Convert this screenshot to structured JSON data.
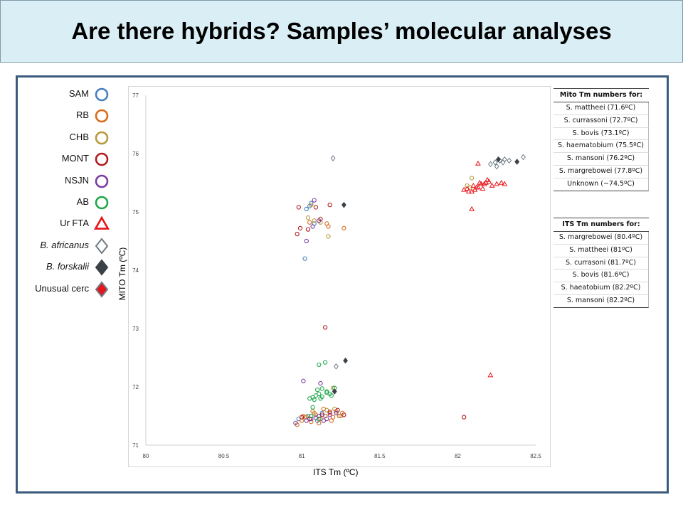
{
  "title": "Are there hybrids? Samples’ molecular analyses",
  "legend": [
    {
      "label": "SAM",
      "symbol": "circle",
      "color": "#4a7fc1",
      "fill": "none",
      "italic": false
    },
    {
      "label": "RB",
      "symbol": "circle",
      "color": "#d96b1e",
      "fill": "none",
      "italic": false
    },
    {
      "label": "CHB",
      "symbol": "circle",
      "color": "#b8993a",
      "fill": "none",
      "italic": false
    },
    {
      "label": "MONT",
      "symbol": "circle",
      "color": "#b01e1e",
      "fill": "none",
      "italic": false
    },
    {
      "label": "NSJN",
      "symbol": "circle",
      "color": "#7a3ea0",
      "fill": "none",
      "italic": false
    },
    {
      "label": "AB",
      "symbol": "circle",
      "color": "#1fa84a",
      "fill": "none",
      "italic": false
    },
    {
      "label": "Ur FTA",
      "symbol": "triangle",
      "color": "#e8141a",
      "fill": "none",
      "italic": false
    },
    {
      "label": "B. africanus",
      "symbol": "diamond",
      "color": "#6d7b87",
      "fill": "none",
      "italic": true
    },
    {
      "label": "B. forskalii",
      "symbol": "diamond",
      "color": "#3a4248",
      "fill": "#3a4248",
      "italic": true
    },
    {
      "label": "Unusual cerc",
      "symbol": "diamond",
      "color": "#6d7b87",
      "fill": "#e8141a",
      "italic": false
    }
  ],
  "mito_table": {
    "header": "Mito Tm numbers for:",
    "rows": [
      "S. mattheei (71.6ºC)",
      "S. currassoni (72.7ºC)",
      "S. bovis (73.1ºC)",
      "S. haematobium (75.5ºC)",
      "S. mansoni (76.2ºC)",
      "S. margrebowei (77.8ºC)",
      "Unknown (~74.5ºC)"
    ]
  },
  "its_table": {
    "header": "ITS Tm numbers for:",
    "rows": [
      "S. margrebowei (80.4ºC)",
      "S. mattheei (81ºC)",
      "S. currasoni (81.7ºC)",
      "S. bovis (81.6ºC)",
      "S. haeatobium (82.2ºC)",
      "S. mansoni (82.2ºC)"
    ]
  },
  "chart_data": {
    "type": "scatter",
    "xlabel": "ITS Tm (ºC)",
    "ylabel": "MITO Tm (ºC)",
    "xlim": [
      80,
      82.5
    ],
    "ylim": [
      71,
      77
    ],
    "xticks": [
      "80",
      "80.5",
      "81",
      "81.5",
      "82",
      "82.5"
    ],
    "yticks": [
      "71",
      "72",
      "73",
      "74",
      "75",
      "76",
      "77"
    ],
    "grid": false,
    "colors": {
      "SAM": "#4a7fc1",
      "RB": "#d96b1e",
      "CHB": "#b8993a",
      "MONT": "#b01e1e",
      "NSJN": "#7a3ea0",
      "AB": "#1fa84a",
      "Ur FTA": "#e8141a",
      "B. africanus": "#6d7b87",
      "B. forskalii": "#3a4248"
    },
    "series": [
      {
        "name": "SAM",
        "marker": "circle",
        "points": [
          [
            81.02,
            74.2
          ],
          [
            81.03,
            75.05
          ],
          [
            81.05,
            75.1
          ],
          [
            81.08,
            74.8
          ],
          [
            81.06,
            75.15
          ],
          [
            80.98,
            71.45
          ],
          [
            81.04,
            71.5
          ],
          [
            81.1,
            71.42
          ],
          [
            81.13,
            71.55
          ]
        ]
      },
      {
        "name": "RB",
        "marker": "circle",
        "points": [
          [
            80.97,
            71.35
          ],
          [
            81.0,
            71.42
          ],
          [
            81.03,
            71.48
          ],
          [
            81.06,
            71.4
          ],
          [
            81.09,
            71.52
          ],
          [
            81.12,
            71.45
          ],
          [
            81.15,
            71.5
          ],
          [
            81.18,
            71.55
          ],
          [
            81.2,
            71.48
          ],
          [
            81.22,
            71.58
          ],
          [
            81.24,
            71.5
          ],
          [
            81.26,
            71.55
          ],
          [
            81.14,
            71.62
          ],
          [
            81.07,
            71.58
          ],
          [
            81.01,
            71.5
          ],
          [
            81.11,
            71.38
          ],
          [
            81.19,
            71.42
          ],
          [
            81.17,
            74.75
          ],
          [
            81.16,
            74.8
          ],
          [
            81.27,
            74.72
          ],
          [
            81.05,
            74.82
          ]
        ]
      },
      {
        "name": "CHB",
        "marker": "circle",
        "points": [
          [
            81.04,
            74.9
          ],
          [
            81.08,
            74.85
          ],
          [
            81.12,
            74.82
          ],
          [
            81.06,
            75.12
          ],
          [
            81.17,
            74.58
          ],
          [
            81.02,
            71.48
          ],
          [
            81.08,
            71.55
          ],
          [
            81.16,
            71.6
          ],
          [
            81.21,
            71.62
          ],
          [
            81.2,
            71.98
          ],
          [
            82.09,
            75.58
          ],
          [
            82.08,
            75.42
          ],
          [
            82.06,
            75.45
          ],
          [
            81.25,
            71.5
          ]
        ]
      },
      {
        "name": "MONT",
        "marker": "circle",
        "points": [
          [
            80.98,
            75.08
          ],
          [
            80.97,
            74.62
          ],
          [
            80.99,
            74.72
          ],
          [
            81.04,
            74.7
          ],
          [
            81.09,
            75.08
          ],
          [
            81.12,
            74.88
          ],
          [
            81.18,
            75.12
          ],
          [
            81.15,
            73.02
          ],
          [
            82.04,
            71.48
          ],
          [
            81.05,
            71.45
          ],
          [
            81.13,
            71.52
          ],
          [
            81.18,
            71.57
          ],
          [
            81.23,
            71.6
          ],
          [
            81.27,
            71.52
          ],
          [
            81.0,
            71.48
          ]
        ]
      },
      {
        "name": "NSJN",
        "marker": "circle",
        "points": [
          [
            81.08,
            75.2
          ],
          [
            81.03,
            74.5
          ],
          [
            81.07,
            74.75
          ],
          [
            81.11,
            74.85
          ],
          [
            81.01,
            72.1
          ],
          [
            81.14,
            71.42
          ],
          [
            81.09,
            71.47
          ],
          [
            81.03,
            71.42
          ],
          [
            80.96,
            71.38
          ],
          [
            81.11,
            71.5
          ],
          [
            81.18,
            71.52
          ],
          [
            81.06,
            71.45
          ],
          [
            81.16,
            71.45
          ],
          [
            81.12,
            72.06
          ],
          [
            81.22,
            71.55
          ]
        ]
      },
      {
        "name": "AB",
        "marker": "circle",
        "points": [
          [
            81.11,
            72.38
          ],
          [
            81.15,
            72.42
          ],
          [
            81.07,
            71.82
          ],
          [
            81.09,
            71.85
          ],
          [
            81.11,
            71.88
          ],
          [
            81.13,
            71.83
          ],
          [
            81.16,
            71.9
          ],
          [
            81.05,
            71.8
          ],
          [
            81.08,
            71.78
          ],
          [
            81.12,
            71.8
          ],
          [
            81.19,
            71.85
          ],
          [
            81.1,
            71.95
          ],
          [
            81.13,
            71.97
          ],
          [
            81.16,
            71.92
          ],
          [
            81.18,
            71.88
          ],
          [
            81.06,
            71.5
          ],
          [
            81.11,
            71.45
          ],
          [
            81.21,
            71.98
          ],
          [
            81.07,
            71.65
          ]
        ]
      },
      {
        "name": "Ur FTA",
        "marker": "triangle",
        "points": [
          [
            82.04,
            75.38
          ],
          [
            82.07,
            75.35
          ],
          [
            82.1,
            75.45
          ],
          [
            82.12,
            75.42
          ],
          [
            82.14,
            75.5
          ],
          [
            82.17,
            75.48
          ],
          [
            82.2,
            75.52
          ],
          [
            82.13,
            75.42
          ],
          [
            82.15,
            75.48
          ],
          [
            82.18,
            75.5
          ],
          [
            82.22,
            75.45
          ],
          [
            82.25,
            75.48
          ],
          [
            82.11,
            75.38
          ],
          [
            82.16,
            75.4
          ],
          [
            82.09,
            75.35
          ],
          [
            82.28,
            75.5
          ],
          [
            82.3,
            75.48
          ],
          [
            82.13,
            75.83
          ],
          [
            82.09,
            75.05
          ],
          [
            82.21,
            72.2
          ],
          [
            82.19,
            75.55
          ],
          [
            82.06,
            75.4
          ]
        ]
      },
      {
        "name": "B. africanus",
        "marker": "diamond",
        "points": [
          [
            81.2,
            75.92
          ],
          [
            81.22,
            72.35
          ],
          [
            82.21,
            75.82
          ],
          [
            82.24,
            75.85
          ],
          [
            82.27,
            75.88
          ],
          [
            82.3,
            75.9
          ],
          [
            82.33,
            75.88
          ],
          [
            82.42,
            75.94
          ],
          [
            82.25,
            75.78
          ],
          [
            82.29,
            75.85
          ]
        ]
      },
      {
        "name": "B. forskalii",
        "marker": "diamond",
        "filled": true,
        "points": [
          [
            81.27,
            75.12
          ],
          [
            81.28,
            72.45
          ],
          [
            81.21,
            71.92
          ],
          [
            82.38,
            75.86
          ],
          [
            82.26,
            75.9
          ]
        ]
      }
    ]
  }
}
